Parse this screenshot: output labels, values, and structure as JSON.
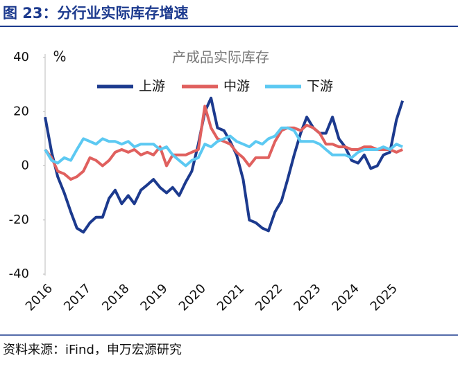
{
  "header": {
    "title": "图 23：分行业实际库存增速"
  },
  "footer": {
    "source": "资料来源：iFind，申万宏源研究"
  },
  "chart_data": {
    "type": "line",
    "title": "产成品实际库存",
    "y_label": "%",
    "x": [
      2016,
      2016.17,
      2016.33,
      2016.5,
      2016.67,
      2016.83,
      2017,
      2017.17,
      2017.33,
      2017.5,
      2017.67,
      2017.83,
      2018,
      2018.17,
      2018.33,
      2018.5,
      2018.67,
      2018.83,
      2019,
      2019.17,
      2019.33,
      2019.5,
      2019.67,
      2019.83,
      2020,
      2020.17,
      2020.33,
      2020.5,
      2020.67,
      2020.83,
      2021,
      2021.17,
      2021.33,
      2021.5,
      2021.67,
      2021.83,
      2022,
      2022.17,
      2022.33,
      2022.5,
      2022.67,
      2022.83,
      2023,
      2023.17,
      2023.33,
      2023.5,
      2023.67,
      2023.83,
      2024,
      2024.17,
      2024.33,
      2024.5,
      2024.67,
      2024.83,
      2025,
      2025.17,
      2025.33
    ],
    "series": [
      {
        "name": "上游",
        "color": "#1c3a8e",
        "values": [
          18,
          5,
          -4,
          -10,
          -17,
          -23,
          -24.5,
          -21,
          -19,
          -19,
          -12,
          -9,
          -14,
          -11,
          -14,
          -9,
          -7,
          -5,
          -8,
          -10,
          -8,
          -11,
          -6,
          -2,
          8,
          20,
          25,
          14,
          13,
          9,
          4,
          -5,
          -20,
          -21,
          -23,
          -24,
          -17,
          -13,
          -5,
          4,
          12,
          18,
          14,
          12,
          12,
          18,
          10,
          7,
          2,
          1,
          4,
          -1,
          0,
          4,
          5,
          17,
          24
        ]
      },
      {
        "name": "中游",
        "color": "#e0605e",
        "values": [
          6,
          3,
          -2,
          -3,
          -5,
          -4,
          -2,
          3,
          2,
          0,
          2,
          5,
          6,
          5,
          6,
          4,
          5,
          4,
          7,
          0,
          4,
          4,
          4,
          5,
          6,
          22,
          14,
          10,
          9,
          8,
          5,
          3,
          0,
          3,
          3,
          3,
          9,
          13,
          14,
          14,
          13,
          15,
          14,
          12,
          8,
          8,
          7,
          7,
          6,
          6,
          7,
          7,
          6,
          6,
          6,
          5,
          6
        ]
      },
      {
        "name": "下游",
        "color": "#5cc9f2",
        "values": [
          6,
          2,
          1,
          3,
          2,
          6,
          10,
          9,
          8,
          10,
          9,
          9,
          8,
          9,
          7,
          8,
          8,
          8,
          6,
          7,
          4,
          2,
          0,
          2,
          3,
          8,
          7,
          9,
          10,
          11,
          9,
          8,
          7,
          9,
          8,
          10,
          11,
          14,
          14,
          13,
          9,
          9,
          9,
          8,
          6,
          4,
          4,
          4,
          3,
          5,
          6,
          6,
          6,
          7,
          6,
          8,
          7
        ]
      }
    ],
    "xlim": [
      2016,
      2025.6
    ],
    "xticks": [
      2016,
      2017,
      2018,
      2019,
      2020,
      2021,
      2022,
      2023,
      2024,
      2025
    ],
    "ylim": [
      -40,
      40
    ],
    "yticks": [
      40,
      20,
      0,
      -20,
      -40
    ],
    "grid": false,
    "legend": "top"
  }
}
